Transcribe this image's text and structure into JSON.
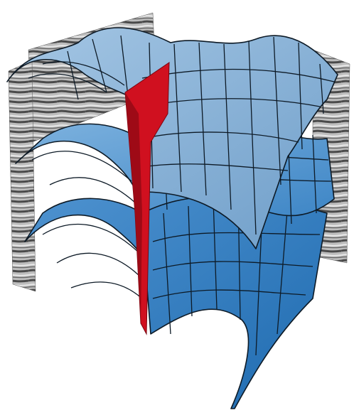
{
  "diagram": {
    "kind": "3d-layered-horizon-surfaces-with-fault",
    "horizon_count": 3,
    "fault_plane_count": 1,
    "colors": {
      "background": "#ffffff",
      "seismic_light": "#cfcfcf",
      "seismic_dark": "#3a3a3a",
      "fault": "#d0101f",
      "fault_dark": "#9e0a16",
      "horizon_top": "#8fb8dc",
      "horizon_middle": "#5f9dd0",
      "horizon_bottom": "#2f7fc4",
      "mesh_line": "#0d1a26"
    },
    "labels": []
  }
}
